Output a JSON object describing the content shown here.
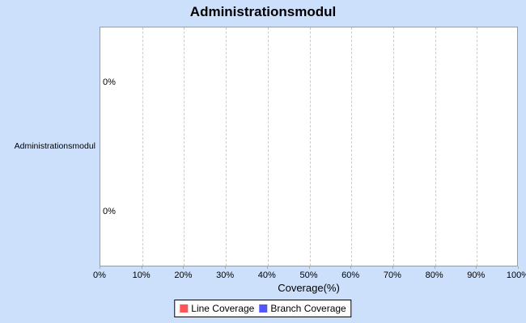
{
  "chart_data": {
    "type": "bar",
    "orientation": "horizontal",
    "title": "Administrationsmodul",
    "categories": [
      "Administrationsmodul"
    ],
    "series": [
      {
        "name": "Line Coverage",
        "color": "#ff5555",
        "values": [
          0
        ],
        "value_labels": [
          "0%"
        ]
      },
      {
        "name": "Branch Coverage",
        "color": "#5555ff",
        "values": [
          0
        ],
        "value_labels": [
          "0%"
        ]
      }
    ],
    "xlabel": "Coverage(%)",
    "xlim": [
      0,
      100
    ],
    "x_ticks": [
      0,
      10,
      20,
      30,
      40,
      50,
      60,
      70,
      80,
      90,
      100
    ],
    "x_tick_labels": [
      "0%",
      "10%",
      "20%",
      "30%",
      "40%",
      "50%",
      "60%",
      "70%",
      "80%",
      "90%",
      "100%"
    ],
    "grid": "vertical-dashed",
    "legend_position": "bottom",
    "legend_entries": [
      "Line Coverage",
      "Branch Coverage"
    ],
    "plot_background": "#ffffff",
    "chart_background": "#cce0fc",
    "gridline_color": "#cccccc",
    "plot_border_color": "#9a9aa2"
  }
}
